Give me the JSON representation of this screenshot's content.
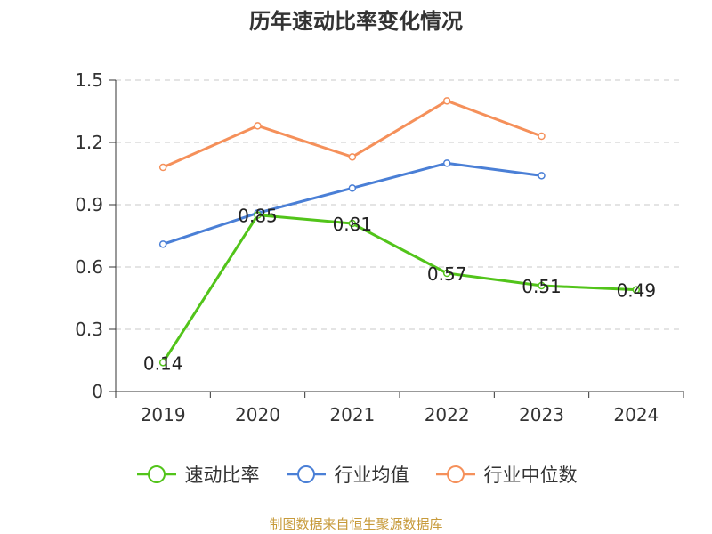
{
  "chart_data": {
    "type": "line",
    "title": "历年速动比率变化情况",
    "categories": [
      "2019",
      "2020",
      "2021",
      "2022",
      "2023",
      "2024"
    ],
    "ylim": [
      0,
      1.5
    ],
    "yticks": [
      "0",
      "0.3",
      "0.6",
      "0.9",
      "1.2",
      "1.5"
    ],
    "grid": true,
    "legend_position": "bottom",
    "series": [
      {
        "name": "速动比率",
        "color": "#52c41a",
        "values": [
          0.14,
          0.85,
          0.81,
          0.57,
          0.51,
          0.49
        ],
        "labels": [
          "0.14",
          "0.85",
          "0.81",
          "0.57",
          "0.51",
          "0.49"
        ]
      },
      {
        "name": "行业均值",
        "color": "#4a7fd6",
        "values": [
          0.71,
          0.86,
          0.98,
          1.1,
          1.04,
          null
        ]
      },
      {
        "name": "行业中位数",
        "color": "#f5905a",
        "values": [
          1.08,
          1.28,
          1.13,
          1.4,
          1.23,
          null
        ]
      }
    ]
  },
  "source": "制图数据来自恒生聚源数据库"
}
